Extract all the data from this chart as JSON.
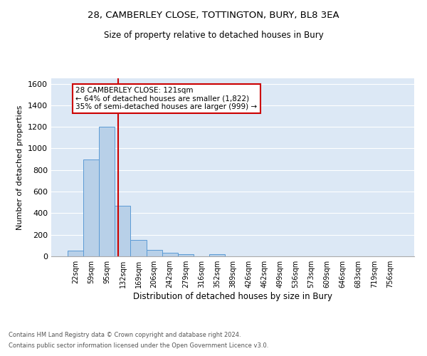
{
  "title1": "28, CAMBERLEY CLOSE, TOTTINGTON, BURY, BL8 3EA",
  "title2": "Size of property relative to detached houses in Bury",
  "xlabel": "Distribution of detached houses by size in Bury",
  "ylabel": "Number of detached properties",
  "bar_labels": [
    "22sqm",
    "59sqm",
    "95sqm",
    "132sqm",
    "169sqm",
    "206sqm",
    "242sqm",
    "279sqm",
    "316sqm",
    "352sqm",
    "389sqm",
    "426sqm",
    "462sqm",
    "499sqm",
    "536sqm",
    "573sqm",
    "609sqm",
    "646sqm",
    "683sqm",
    "719sqm",
    "756sqm"
  ],
  "bar_values": [
    50,
    900,
    1200,
    470,
    150,
    60,
    30,
    20,
    0,
    20,
    0,
    0,
    0,
    0,
    0,
    0,
    0,
    0,
    0,
    0,
    0
  ],
  "bar_color": "#b8d0e8",
  "bar_edge_color": "#5b9bd5",
  "bg_color": "#dce8f5",
  "grid_color": "#ffffff",
  "red_line_x": 2.72,
  "annotation_text": "28 CAMBERLEY CLOSE: 121sqm\n← 64% of detached houses are smaller (1,822)\n35% of semi-detached houses are larger (999) →",
  "annotation_box_color": "#ffffff",
  "annotation_box_edge": "#cc0000",
  "ylim": [
    0,
    1650
  ],
  "yticks": [
    0,
    200,
    400,
    600,
    800,
    1000,
    1200,
    1400,
    1600
  ],
  "footnote1": "Contains HM Land Registry data © Crown copyright and database right 2024.",
  "footnote2": "Contains public sector information licensed under the Open Government Licence v3.0."
}
